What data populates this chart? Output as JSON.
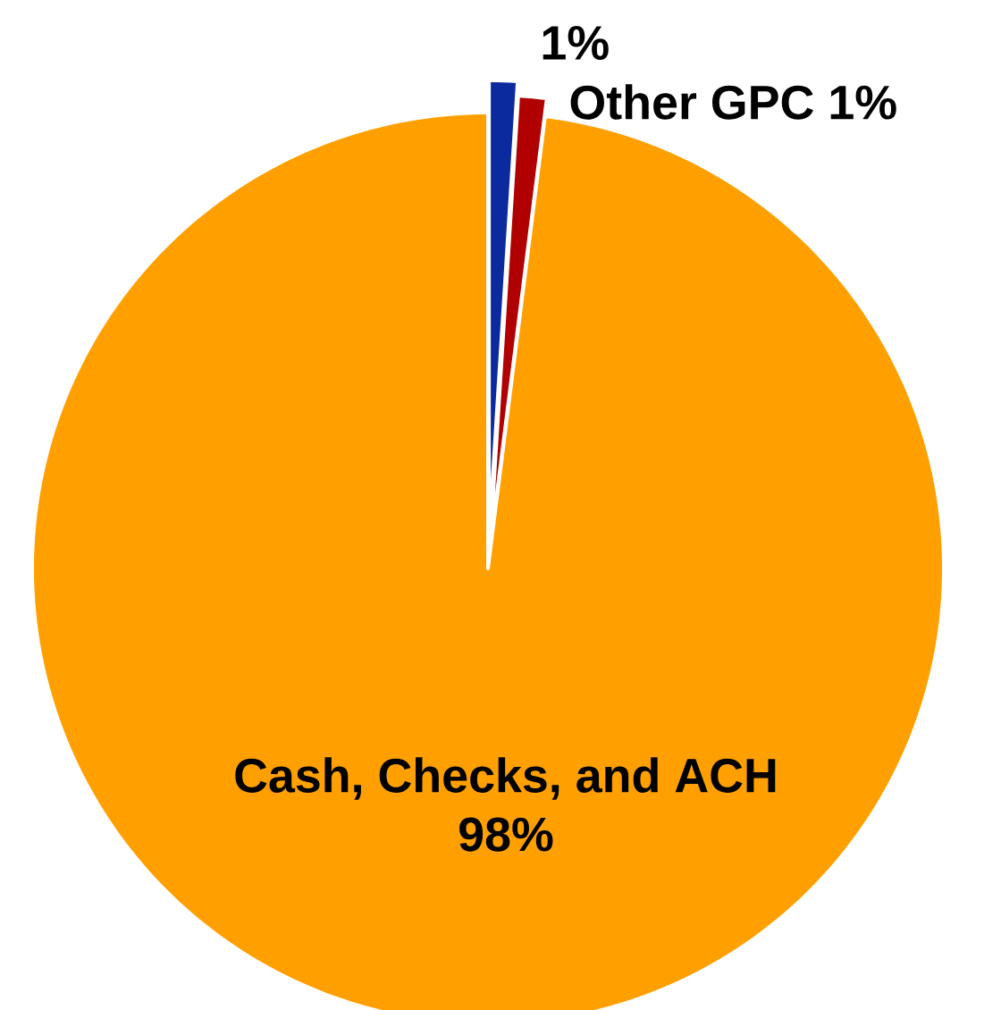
{
  "chart_data": {
    "type": "pie",
    "categories": [
      null,
      "Other GPC",
      "Cash, Checks, and ACH"
    ],
    "values": [
      1,
      1,
      98
    ],
    "colors": [
      "#0a2a9e",
      "#b00000",
      "#ffa000"
    ],
    "value_labels": [
      "1%",
      "1%",
      "98%"
    ]
  }
}
